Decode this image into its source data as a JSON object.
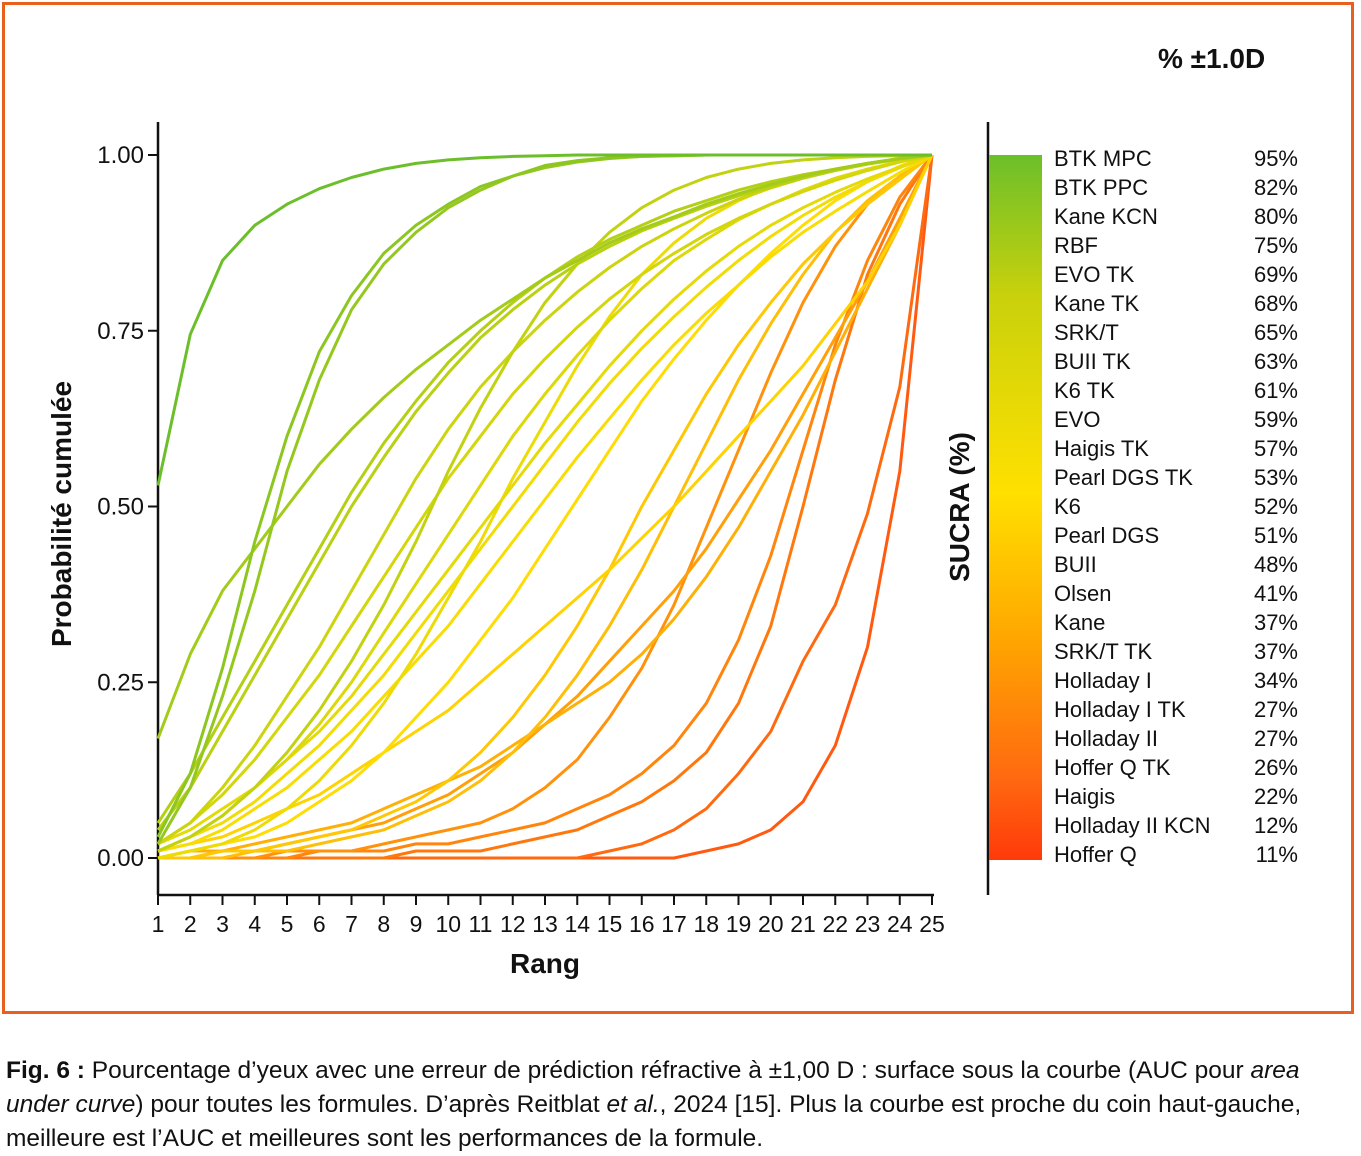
{
  "header": {
    "title": "% ±1.0D"
  },
  "chart_data": {
    "type": "line",
    "xlabel": "Rang",
    "ylabel": "Probabilité cumulée",
    "xlim": [
      1,
      25
    ],
    "ylim": [
      0,
      1
    ],
    "x_ticks": [
      "1",
      "2",
      "3",
      "4",
      "5",
      "6",
      "7",
      "8",
      "9",
      "10",
      "11",
      "12",
      "13",
      "14",
      "15",
      "16",
      "17",
      "18",
      "19",
      "20",
      "21",
      "22",
      "23",
      "24",
      "25"
    ],
    "y_ticks": [
      "0.00",
      "0.25",
      "0.50",
      "0.75",
      "1.00"
    ],
    "colorbar_label": "SUCRA (%)",
    "colorbar_colors": [
      "#6cbf2a",
      "#c9d10c",
      "#ffe000",
      "#ffa800",
      "#ff6a10",
      "#ff3a0a"
    ],
    "legend": [
      {
        "name": "BTK MPC",
        "value": "95%"
      },
      {
        "name": "BTK PPC",
        "value": "82%"
      },
      {
        "name": "Kane KCN",
        "value": "80%"
      },
      {
        "name": "RBF",
        "value": "75%"
      },
      {
        "name": "EVO TK",
        "value": "69%"
      },
      {
        "name": "Kane TK",
        "value": "68%"
      },
      {
        "name": "SRK/T",
        "value": "65%"
      },
      {
        "name": "BUII TK",
        "value": "63%"
      },
      {
        "name": "K6 TK",
        "value": "61%"
      },
      {
        "name": "EVO",
        "value": "59%"
      },
      {
        "name": "Haigis TK",
        "value": "57%"
      },
      {
        "name": "Pearl DGS TK",
        "value": "53%"
      },
      {
        "name": "K6",
        "value": "52%"
      },
      {
        "name": "Pearl DGS",
        "value": "51%"
      },
      {
        "name": "BUII",
        "value": "48%"
      },
      {
        "name": "Olsen",
        "value": "41%"
      },
      {
        "name": "Kane",
        "value": "37%"
      },
      {
        "name": "SRK/T TK",
        "value": "37%"
      },
      {
        "name": "Holladay I",
        "value": "34%"
      },
      {
        "name": "Holladay I TK",
        "value": "27%"
      },
      {
        "name": "Holladay II",
        "value": "27%"
      },
      {
        "name": "Hoffer Q TK",
        "value": "26%"
      },
      {
        "name": "Haigis",
        "value": "22%"
      },
      {
        "name": "Holladay II KCN",
        "value": "12%"
      },
      {
        "name": "Hoffer Q",
        "value": "11%"
      }
    ],
    "series": [
      {
        "color": "#6cbf2a",
        "values": [
          0.53,
          0.745,
          0.85,
          0.9,
          0.93,
          0.952,
          0.968,
          0.98,
          0.988,
          0.993,
          0.996,
          0.998,
          0.999,
          1,
          1,
          1,
          1,
          1,
          1,
          1,
          1,
          1,
          1,
          1,
          1
        ]
      },
      {
        "color": "#8cc620",
        "values": [
          0.03,
          0.12,
          0.27,
          0.45,
          0.6,
          0.72,
          0.8,
          0.86,
          0.9,
          0.93,
          0.955,
          0.97,
          0.985,
          0.992,
          0.996,
          0.998,
          0.999,
          1,
          1,
          1,
          1,
          1,
          1,
          1,
          1
        ]
      },
      {
        "color": "#95c81e",
        "values": [
          0.02,
          0.1,
          0.23,
          0.38,
          0.55,
          0.68,
          0.78,
          0.845,
          0.89,
          0.925,
          0.95,
          0.97,
          0.982,
          0.99,
          0.995,
          0.998,
          0.999,
          1,
          1,
          1,
          1,
          1,
          1,
          1,
          1
        ]
      },
      {
        "color": "#a2cb1a",
        "values": [
          0.17,
          0.29,
          0.38,
          0.44,
          0.5,
          0.56,
          0.61,
          0.655,
          0.695,
          0.73,
          0.765,
          0.795,
          0.825,
          0.85,
          0.875,
          0.895,
          0.912,
          0.93,
          0.945,
          0.958,
          0.97,
          0.98,
          0.988,
          0.995,
          1
        ]
      },
      {
        "color": "#b4cf14",
        "values": [
          0.05,
          0.12,
          0.2,
          0.28,
          0.36,
          0.44,
          0.52,
          0.59,
          0.65,
          0.705,
          0.75,
          0.79,
          0.825,
          0.855,
          0.88,
          0.9,
          0.92,
          0.935,
          0.95,
          0.962,
          0.972,
          0.98,
          0.988,
          0.995,
          1
        ]
      },
      {
        "color": "#bad012",
        "values": [
          0.04,
          0.1,
          0.18,
          0.26,
          0.34,
          0.42,
          0.5,
          0.57,
          0.635,
          0.69,
          0.74,
          0.78,
          0.815,
          0.845,
          0.87,
          0.892,
          0.91,
          0.927,
          0.942,
          0.955,
          0.967,
          0.978,
          0.987,
          0.994,
          1
        ]
      },
      {
        "color": "#c2d210",
        "values": [
          0.01,
          0.03,
          0.06,
          0.1,
          0.15,
          0.21,
          0.28,
          0.36,
          0.45,
          0.55,
          0.64,
          0.72,
          0.79,
          0.845,
          0.89,
          0.925,
          0.95,
          0.968,
          0.98,
          0.988,
          0.993,
          0.996,
          0.998,
          0.999,
          1
        ]
      },
      {
        "color": "#cbd40e",
        "values": [
          0.02,
          0.05,
          0.1,
          0.16,
          0.23,
          0.3,
          0.38,
          0.46,
          0.54,
          0.61,
          0.67,
          0.72,
          0.765,
          0.805,
          0.84,
          0.87,
          0.895,
          0.917,
          0.937,
          0.953,
          0.967,
          0.979,
          0.988,
          0.995,
          1
        ]
      },
      {
        "color": "#d4d60c",
        "values": [
          0.02,
          0.05,
          0.09,
          0.14,
          0.2,
          0.26,
          0.33,
          0.4,
          0.47,
          0.54,
          0.6,
          0.66,
          0.71,
          0.755,
          0.795,
          0.83,
          0.86,
          0.887,
          0.91,
          0.93,
          0.948,
          0.964,
          0.978,
          0.99,
          1
        ]
      },
      {
        "color": "#dcd80a",
        "values": [
          0.01,
          0.03,
          0.06,
          0.1,
          0.14,
          0.19,
          0.25,
          0.32,
          0.39,
          0.46,
          0.53,
          0.6,
          0.66,
          0.715,
          0.765,
          0.81,
          0.85,
          0.88,
          0.908,
          0.93,
          0.95,
          0.967,
          0.98,
          0.991,
          1
        ]
      },
      {
        "color": "#e4da08",
        "values": [
          0.02,
          0.04,
          0.07,
          0.1,
          0.14,
          0.18,
          0.23,
          0.29,
          0.35,
          0.41,
          0.47,
          0.53,
          0.59,
          0.645,
          0.7,
          0.75,
          0.795,
          0.835,
          0.87,
          0.9,
          0.925,
          0.947,
          0.966,
          0.983,
          1
        ]
      },
      {
        "color": "#ecdb06",
        "values": [
          0.0,
          0.01,
          0.02,
          0.04,
          0.07,
          0.11,
          0.16,
          0.22,
          0.29,
          0.37,
          0.45,
          0.54,
          0.62,
          0.7,
          0.77,
          0.83,
          0.875,
          0.91,
          0.935,
          0.955,
          0.97,
          0.98,
          0.988,
          0.995,
          1
        ]
      },
      {
        "color": "#f2dc05",
        "values": [
          0.01,
          0.03,
          0.05,
          0.08,
          0.12,
          0.16,
          0.21,
          0.26,
          0.32,
          0.38,
          0.44,
          0.5,
          0.56,
          0.62,
          0.675,
          0.725,
          0.77,
          0.812,
          0.85,
          0.884,
          0.914,
          0.94,
          0.962,
          0.982,
          1
        ]
      },
      {
        "color": "#f8dd04",
        "values": [
          0.01,
          0.02,
          0.04,
          0.07,
          0.1,
          0.14,
          0.18,
          0.23,
          0.28,
          0.33,
          0.39,
          0.45,
          0.51,
          0.57,
          0.625,
          0.68,
          0.73,
          0.775,
          0.815,
          0.855,
          0.89,
          0.92,
          0.948,
          0.975,
          1
        ]
      },
      {
        "color": "#ffdc03",
        "values": [
          0.0,
          0.01,
          0.02,
          0.03,
          0.05,
          0.08,
          0.11,
          0.15,
          0.2,
          0.25,
          0.31,
          0.37,
          0.44,
          0.51,
          0.58,
          0.65,
          0.71,
          0.765,
          0.815,
          0.86,
          0.9,
          0.935,
          0.962,
          0.984,
          1
        ]
      },
      {
        "color": "#ffd303",
        "values": [
          0.01,
          0.02,
          0.03,
          0.05,
          0.07,
          0.09,
          0.12,
          0.15,
          0.18,
          0.21,
          0.25,
          0.29,
          0.33,
          0.37,
          0.41,
          0.455,
          0.5,
          0.55,
          0.6,
          0.65,
          0.7,
          0.76,
          0.82,
          0.9,
          1
        ]
      },
      {
        "color": "#ffc805",
        "values": [
          0.0,
          0.0,
          0.01,
          0.01,
          0.02,
          0.03,
          0.04,
          0.06,
          0.08,
          0.11,
          0.15,
          0.2,
          0.26,
          0.33,
          0.41,
          0.5,
          0.58,
          0.66,
          0.73,
          0.79,
          0.845,
          0.89,
          0.93,
          0.965,
          1
        ]
      },
      {
        "color": "#ffbe07",
        "values": [
          0.0,
          0.0,
          0.0,
          0.01,
          0.01,
          0.02,
          0.03,
          0.04,
          0.06,
          0.08,
          0.11,
          0.15,
          0.2,
          0.26,
          0.33,
          0.41,
          0.5,
          0.59,
          0.68,
          0.76,
          0.83,
          0.89,
          0.935,
          0.97,
          1
        ]
      },
      {
        "color": "#ffb008",
        "values": [
          0.0,
          0.01,
          0.01,
          0.02,
          0.03,
          0.04,
          0.05,
          0.07,
          0.09,
          0.11,
          0.13,
          0.16,
          0.19,
          0.22,
          0.25,
          0.29,
          0.34,
          0.4,
          0.47,
          0.55,
          0.63,
          0.72,
          0.81,
          0.9,
          1
        ]
      },
      {
        "color": "#ffa00a",
        "values": [
          0.0,
          0.0,
          0.01,
          0.01,
          0.02,
          0.03,
          0.04,
          0.05,
          0.07,
          0.09,
          0.12,
          0.15,
          0.19,
          0.23,
          0.28,
          0.33,
          0.38,
          0.44,
          0.51,
          0.58,
          0.66,
          0.74,
          0.82,
          0.91,
          1
        ]
      },
      {
        "color": "#ff920c",
        "values": [
          0.0,
          0.0,
          0.0,
          0.0,
          0.01,
          0.01,
          0.01,
          0.02,
          0.03,
          0.04,
          0.05,
          0.07,
          0.1,
          0.14,
          0.2,
          0.27,
          0.36,
          0.47,
          0.58,
          0.69,
          0.79,
          0.87,
          0.93,
          0.97,
          1
        ]
      },
      {
        "color": "#ff850d",
        "values": [
          0.0,
          0.0,
          0.0,
          0.0,
          0.0,
          0.01,
          0.01,
          0.01,
          0.02,
          0.02,
          0.03,
          0.04,
          0.05,
          0.07,
          0.09,
          0.12,
          0.16,
          0.22,
          0.31,
          0.43,
          0.58,
          0.73,
          0.85,
          0.94,
          1
        ]
      },
      {
        "color": "#ff780e",
        "values": [
          0.0,
          0.0,
          0.0,
          0.0,
          0.0,
          0.0,
          0.0,
          0.0,
          0.01,
          0.01,
          0.01,
          0.02,
          0.03,
          0.04,
          0.06,
          0.08,
          0.11,
          0.15,
          0.22,
          0.33,
          0.5,
          0.68,
          0.83,
          0.93,
          1
        ]
      },
      {
        "color": "#ff6a10",
        "values": [
          0.0,
          0.0,
          0.0,
          0.0,
          0.0,
          0.0,
          0.0,
          0.0,
          0.0,
          0.0,
          0.0,
          0.0,
          0.0,
          0.0,
          0.01,
          0.02,
          0.04,
          0.07,
          0.12,
          0.18,
          0.28,
          0.36,
          0.49,
          0.67,
          1
        ]
      },
      {
        "color": "#ff5a10",
        "values": [
          0.0,
          0.0,
          0.0,
          0.0,
          0.0,
          0.0,
          0.0,
          0.0,
          0.0,
          0.0,
          0.0,
          0.0,
          0.0,
          0.0,
          0.0,
          0.0,
          0.0,
          0.01,
          0.02,
          0.04,
          0.08,
          0.16,
          0.3,
          0.55,
          1
        ]
      }
    ]
  },
  "caption": {
    "label": "Fig. 6 :",
    "text_1": " Pourcentage d’yeux avec une erreur de prédiction réfractive à ±1,00 D : surface sous la courbe (AUC pour ",
    "italic_1": "area under curve",
    "text_2": ") pour toutes les formules. D’après Reitblat ",
    "italic_2": "et al.",
    "text_3": ", 2024 [15]. Plus la courbe est proche du coin haut-gauche, meilleure est l’AUC et meilleures sont les performances de la formule."
  }
}
